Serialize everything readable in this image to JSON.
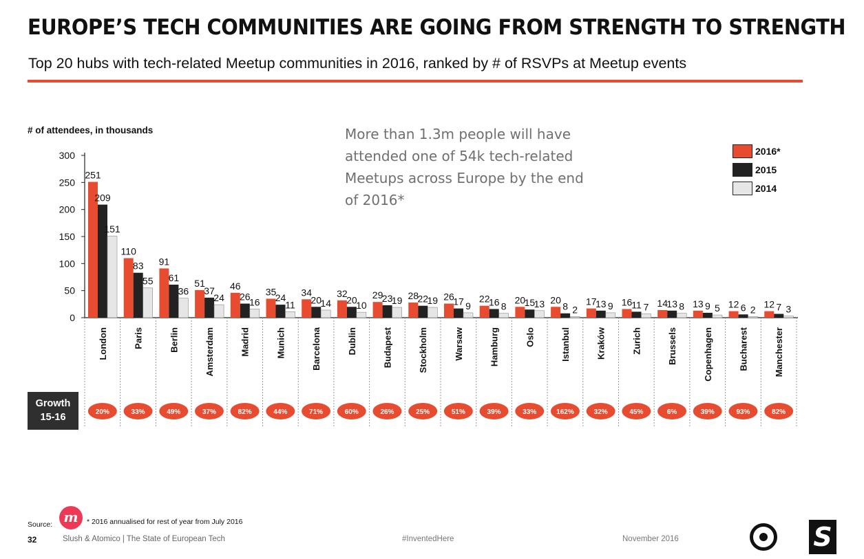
{
  "header": {
    "title": "EUROPE’S TECH COMMUNITIES ARE GOING FROM STRENGTH TO STRENGTH",
    "subtitle": "Top 20 hubs with tech-related Meetup communities in 2016, ranked by # of RSVPs at Meetup events"
  },
  "callout": "More than 1.3m people will have attended one of 54k tech-related Meetups across Europe by the end of 2016*",
  "growth_label_line1": "Growth",
  "growth_label_line2": "15-16",
  "colors": {
    "accent": "#e84c30",
    "s2016": "#e84c30",
    "s2015": "#222222",
    "s2014": "#e6e6e6",
    "growth_pill": "#e84c30"
  },
  "chart_data": {
    "type": "bar",
    "ylabel": "# of attendees, in thousands",
    "ylim": [
      0,
      300
    ],
    "yticks": [
      0,
      50,
      100,
      150,
      200,
      250,
      300
    ],
    "legend_position": "top-right",
    "categories": [
      "London",
      "Paris",
      "Berlin",
      "Amsterdam",
      "Madrid",
      "Munich",
      "Barcelona",
      "Dublin",
      "Budapest",
      "Stockholm",
      "Warsaw",
      "Hamburg",
      "Oslo",
      "Istanbul",
      "Kraków",
      "Zurich",
      "Brussels",
      "Copenhagen",
      "Bucharest",
      "Manchester"
    ],
    "series": [
      {
        "name": "2016*",
        "values": [
          251,
          110,
          91,
          51,
          46,
          35,
          34,
          32,
          29,
          28,
          26,
          22,
          20,
          20,
          17,
          16,
          14,
          13,
          12,
          12
        ]
      },
      {
        "name": "2015",
        "values": [
          209,
          83,
          61,
          37,
          26,
          24,
          20,
          20,
          23,
          22,
          17,
          16,
          15,
          8,
          13,
          11,
          13,
          9,
          6,
          7
        ]
      },
      {
        "name": "2014",
        "values": [
          151,
          55,
          36,
          24,
          16,
          11,
          14,
          10,
          19,
          19,
          9,
          8,
          13,
          2,
          9,
          7,
          8,
          5,
          2,
          3
        ]
      }
    ],
    "growth_15_16": [
      "20%",
      "33%",
      "49%",
      "37%",
      "82%",
      "44%",
      "71%",
      "60%",
      "26%",
      "25%",
      "51%",
      "39%",
      "33%",
      "162%",
      "32%",
      "45%",
      "6%",
      "39%",
      "93%",
      "82%"
    ]
  },
  "footer": {
    "source_label": "Source:",
    "footnote": "* 2016 annualised for rest of year from July 2016",
    "page_number": "32",
    "credit": "Slush & Atomico | The State of European Tech",
    "hashtag": "#InventedHere",
    "date": "November 2016"
  }
}
